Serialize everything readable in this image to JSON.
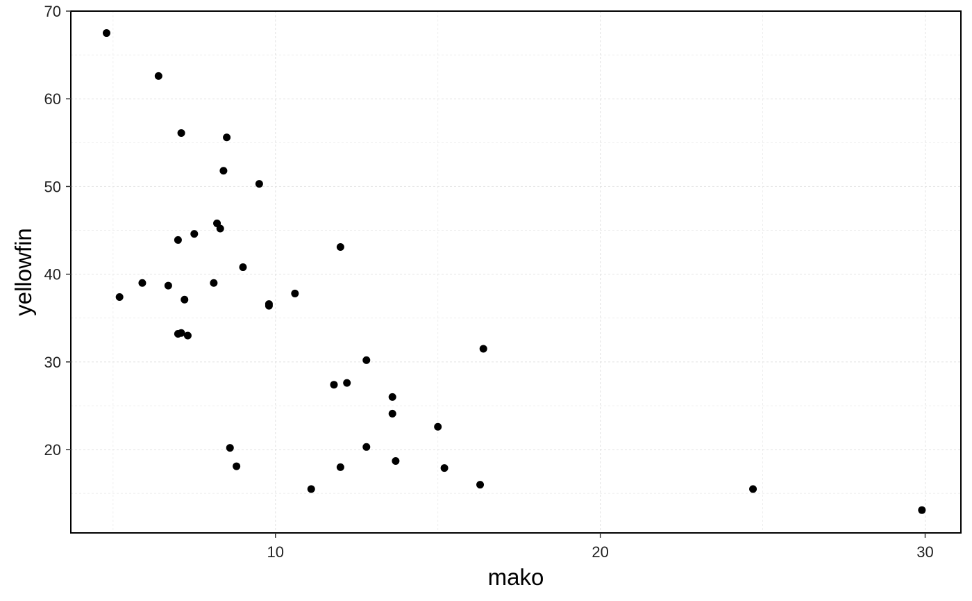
{
  "chart_data": {
    "type": "scatter",
    "title": "",
    "xlabel": "mako",
    "ylabel": "yellowfin",
    "xlim": [
      3.7,
      31.1
    ],
    "ylim": [
      10.5,
      70
    ],
    "x_ticks": [
      10,
      20,
      30
    ],
    "x_minor_ticks": [
      5,
      15,
      25
    ],
    "y_ticks": [
      20,
      30,
      40,
      50,
      60,
      70
    ],
    "y_minor_ticks": [
      15,
      25,
      35,
      45,
      55,
      65
    ],
    "grid": true,
    "legend": "none",
    "point_color": "#000000",
    "points": [
      {
        "x": 4.8,
        "y": 67.5
      },
      {
        "x": 6.4,
        "y": 62.6
      },
      {
        "x": 7.1,
        "y": 56.1
      },
      {
        "x": 8.5,
        "y": 55.6
      },
      {
        "x": 8.4,
        "y": 51.8
      },
      {
        "x": 9.5,
        "y": 50.3
      },
      {
        "x": 8.2,
        "y": 45.8
      },
      {
        "x": 8.3,
        "y": 45.2
      },
      {
        "x": 7.5,
        "y": 44.6
      },
      {
        "x": 7.0,
        "y": 43.9
      },
      {
        "x": 12.0,
        "y": 43.1
      },
      {
        "x": 9.0,
        "y": 40.8
      },
      {
        "x": 5.9,
        "y": 39.0
      },
      {
        "x": 8.1,
        "y": 39.0
      },
      {
        "x": 6.7,
        "y": 38.7
      },
      {
        "x": 10.6,
        "y": 37.8
      },
      {
        "x": 5.2,
        "y": 37.4
      },
      {
        "x": 7.2,
        "y": 37.1
      },
      {
        "x": 9.8,
        "y": 36.6
      },
      {
        "x": 9.8,
        "y": 36.4
      },
      {
        "x": 7.1,
        "y": 33.3
      },
      {
        "x": 7.0,
        "y": 33.2
      },
      {
        "x": 7.3,
        "y": 33.0
      },
      {
        "x": 16.4,
        "y": 31.5
      },
      {
        "x": 12.8,
        "y": 30.2
      },
      {
        "x": 12.2,
        "y": 27.6
      },
      {
        "x": 11.8,
        "y": 27.4
      },
      {
        "x": 13.6,
        "y": 26.0
      },
      {
        "x": 13.6,
        "y": 24.1
      },
      {
        "x": 15.0,
        "y": 22.6
      },
      {
        "x": 8.6,
        "y": 20.2
      },
      {
        "x": 12.8,
        "y": 20.3
      },
      {
        "x": 13.7,
        "y": 18.7
      },
      {
        "x": 8.8,
        "y": 18.1
      },
      {
        "x": 12.0,
        "y": 18.0
      },
      {
        "x": 15.2,
        "y": 17.9
      },
      {
        "x": 16.3,
        "y": 16.0
      },
      {
        "x": 11.1,
        "y": 15.5
      },
      {
        "x": 24.7,
        "y": 15.5
      },
      {
        "x": 29.9,
        "y": 13.1
      }
    ]
  }
}
